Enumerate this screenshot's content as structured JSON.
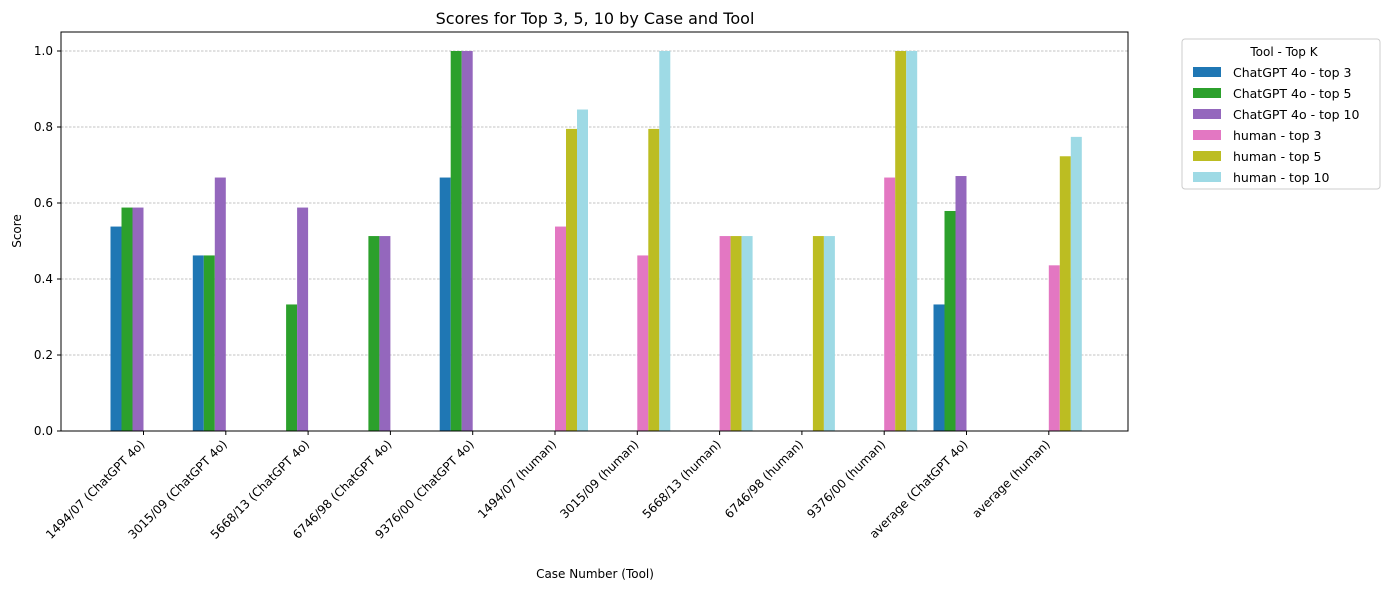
{
  "chart_data": {
    "type": "bar",
    "title": "Scores for Top 3, 5, 10 by Case and Tool",
    "xlabel": "Case Number (Tool)",
    "ylabel": "Score",
    "ylim": [
      0,
      1.05
    ],
    "yticks": [
      "0.0",
      "0.2",
      "0.4",
      "0.6",
      "0.8",
      "1.0"
    ],
    "grid": "y-dashed",
    "legend_title": "Tool - Top K",
    "legend_position": "outside-top-right",
    "categories": [
      "1494/07 (ChatGPT 4o)",
      "3015/09 (ChatGPT 4o)",
      "5668/13 (ChatGPT 4o)",
      "6746/98 (ChatGPT 4o)",
      "9376/00 (ChatGPT 4o)",
      "1494/07 (human)",
      "3015/09 (human)",
      "5668/13 (human)",
      "6746/98 (human)",
      "9376/00 (human)",
      "average (ChatGPT 4o)",
      "average (human)"
    ],
    "series": [
      {
        "name": "ChatGPT 4o - top 3",
        "color": "#1f77b4",
        "values": [
          0.538,
          0.462,
          0,
          0,
          0.667,
          0,
          0,
          0,
          0,
          0,
          0.333,
          0
        ]
      },
      {
        "name": "ChatGPT 4o - top 5",
        "color": "#2ca02c",
        "values": [
          0.588,
          0.462,
          0.333,
          0.513,
          1.0,
          0,
          0,
          0,
          0,
          0,
          0.579,
          0
        ]
      },
      {
        "name": "ChatGPT 4o - top 10",
        "color": "#9467bd",
        "values": [
          0.588,
          0.667,
          0.588,
          0.513,
          1.0,
          0,
          0,
          0,
          0,
          0,
          0.671,
          0
        ]
      },
      {
        "name": "human - top 3",
        "color": "#e377c2",
        "values": [
          0,
          0,
          0,
          0,
          0,
          0.538,
          0.462,
          0.513,
          0,
          0.667,
          0,
          0.436
        ]
      },
      {
        "name": "human - top 5",
        "color": "#bcbd22",
        "values": [
          0,
          0,
          0,
          0,
          0,
          0.795,
          0.795,
          0.513,
          0.513,
          1.0,
          0,
          0.723
        ]
      },
      {
        "name": "human - top 10",
        "color": "#9edae5",
        "values": [
          0,
          0,
          0,
          0,
          0,
          0.846,
          1.0,
          0.513,
          0.513,
          1.0,
          0,
          0.774
        ]
      }
    ]
  }
}
